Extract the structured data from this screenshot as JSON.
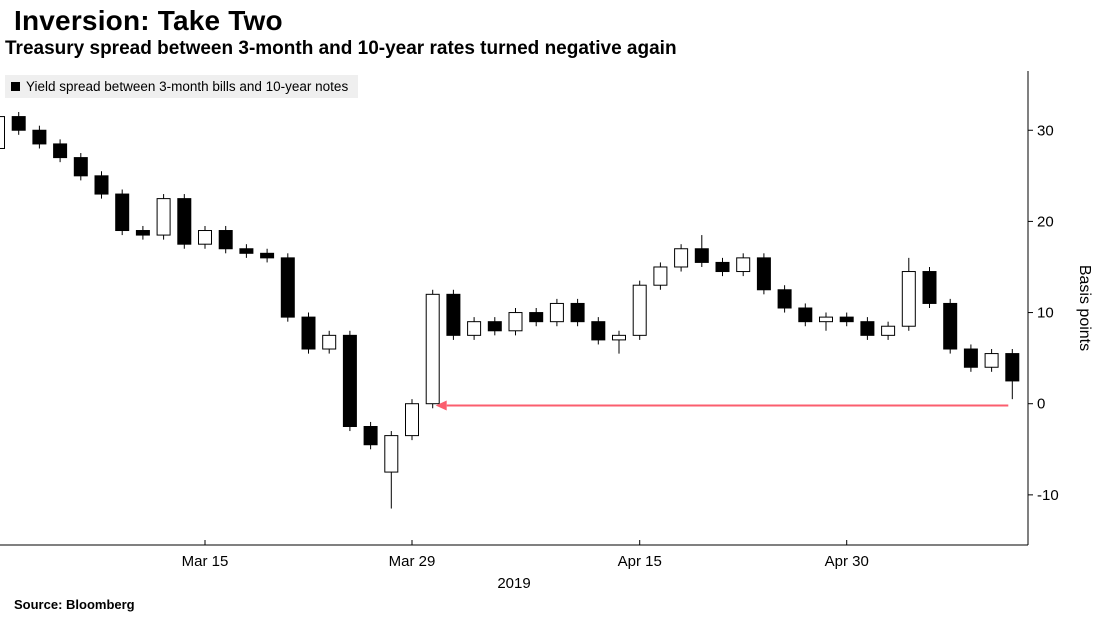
{
  "header": {
    "title": "Inversion: Take Two",
    "subtitle": "Treasury spread between 3-month and 10-year rates turned negative again"
  },
  "legend": {
    "label": "Yield spread between 3-month bills and 10-year notes",
    "marker_color": "#000000",
    "background": "#efefef"
  },
  "source": "Source: Bloomberg",
  "chart_data": {
    "type": "candlestick",
    "title": "Inversion: Take Two",
    "subtitle": "Treasury spread between 3-month and 10-year rates turned negative again",
    "ylabel": "Basis points",
    "xlabel_year": "2019",
    "ylim": [
      -15.5,
      36.5
    ],
    "yticks": [
      -10,
      0,
      10,
      20,
      30
    ],
    "grid": false,
    "legend_position": "top-left",
    "axis_side": "right",
    "xticks": [
      {
        "index": 10,
        "label": "Mar 15"
      },
      {
        "index": 20,
        "label": "Mar 29"
      },
      {
        "index": 31,
        "label": "Apr 15"
      },
      {
        "index": 41,
        "label": "Apr 30"
      }
    ],
    "candle_fields": [
      "date",
      "open",
      "high",
      "low",
      "close"
    ],
    "candles": [
      [
        "Mar 1",
        28,
        32.5,
        27.5,
        31.5
      ],
      [
        "Mar 4",
        31.5,
        32,
        29.5,
        30
      ],
      [
        "Mar 5",
        30,
        30.5,
        28,
        28.5
      ],
      [
        "Mar 6",
        28.5,
        29,
        26.5,
        27
      ],
      [
        "Mar 7",
        27,
        27.5,
        24.5,
        25
      ],
      [
        "Mar 8",
        25,
        25.5,
        22.5,
        23
      ],
      [
        "Mar 11",
        23,
        23.5,
        18.5,
        19
      ],
      [
        "Mar 12",
        19,
        19.5,
        18,
        18.5
      ],
      [
        "Mar 13",
        18.5,
        23,
        18,
        22.5
      ],
      [
        "Mar 14",
        22.5,
        23,
        17,
        17.5
      ],
      [
        "Mar 15",
        17.5,
        19.5,
        17,
        19
      ],
      [
        "Mar 18",
        19,
        19.5,
        16.5,
        17
      ],
      [
        "Mar 19",
        17,
        17.5,
        16,
        16.5
      ],
      [
        "Mar 20",
        16.5,
        17,
        15.5,
        16
      ],
      [
        "Mar 21",
        16,
        16.5,
        9,
        9.5
      ],
      [
        "Mar 22",
        9.5,
        10,
        5.5,
        6
      ],
      [
        "Mar 25",
        6,
        8,
        5.5,
        7.5
      ],
      [
        "Mar 26",
        7.5,
        8,
        -3,
        -2.5
      ],
      [
        "Mar 27",
        -2.5,
        -2,
        -5,
        -4.5
      ],
      [
        "Mar 28",
        -7.5,
        -3,
        -11.5,
        -3.5
      ],
      [
        "Mar 29",
        -3.5,
        0.5,
        -4,
        0
      ],
      [
        "Apr 1",
        0,
        12.5,
        -0.5,
        12
      ],
      [
        "Apr 2",
        12,
        12.5,
        7,
        7.5
      ],
      [
        "Apr 3",
        7.5,
        9.5,
        7,
        9
      ],
      [
        "Apr 4",
        9,
        9.5,
        7.5,
        8
      ],
      [
        "Apr 5",
        8,
        10.5,
        7.5,
        10
      ],
      [
        "Apr 8",
        10,
        10.5,
        8.5,
        9
      ],
      [
        "Apr 9",
        9,
        11.5,
        8.5,
        11
      ],
      [
        "Apr 10",
        11,
        11.5,
        8.5,
        9
      ],
      [
        "Apr 11",
        9,
        9.5,
        6.5,
        7
      ],
      [
        "Apr 12",
        7,
        8,
        5.5,
        7.5
      ],
      [
        "Apr 15",
        7.5,
        13.5,
        7,
        13
      ],
      [
        "Apr 16",
        13,
        15.5,
        12.5,
        15
      ],
      [
        "Apr 17",
        15,
        17.5,
        14.5,
        17
      ],
      [
        "Apr 18",
        17,
        18.5,
        15,
        15.5
      ],
      [
        "Apr 22",
        15.5,
        16,
        14,
        14.5
      ],
      [
        "Apr 23",
        14.5,
        16.5,
        14,
        16
      ],
      [
        "Apr 24",
        16,
        16.5,
        12,
        12.5
      ],
      [
        "Apr 25",
        12.5,
        13,
        10,
        10.5
      ],
      [
        "Apr 26",
        10.5,
        11,
        8.5,
        9
      ],
      [
        "Apr 29",
        9,
        10,
        8,
        9.5
      ],
      [
        "Apr 30",
        9.5,
        10,
        8.5,
        9
      ],
      [
        "May 1",
        9,
        9.5,
        7,
        7.5
      ],
      [
        "May 2",
        7.5,
        9,
        7,
        8.5
      ],
      [
        "May 3",
        8.5,
        16,
        8,
        14.5
      ],
      [
        "May 6",
        14.5,
        15,
        10.5,
        11
      ],
      [
        "May 7",
        11,
        11.5,
        5.5,
        6
      ],
      [
        "May 8",
        6,
        6.5,
        3.5,
        4
      ],
      [
        "May 9",
        4,
        6,
        3.5,
        5.5
      ],
      [
        "May 10",
        5.5,
        6,
        0.5,
        2.5
      ]
    ],
    "annotation_arrow": {
      "description": "horizontal arrow at zero basis points pointing left from the latest candle back to the early-April recovery",
      "y": -0.2,
      "from_date": "May 10",
      "from_index": 49,
      "to_date": "Apr 1",
      "to_index": 21
    },
    "colors": {
      "up_fill": "#ffffff",
      "down_fill": "#000000",
      "stroke": "#000000",
      "axis": "#000000",
      "arrow": "#fb5e6e"
    }
  }
}
